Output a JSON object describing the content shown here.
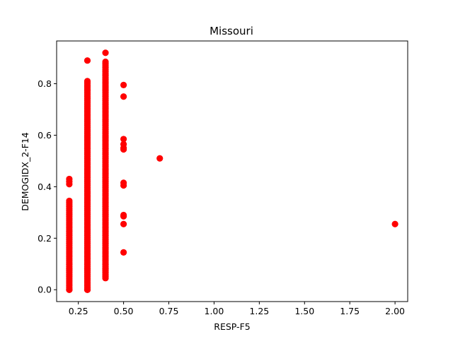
{
  "chart_data": {
    "type": "scatter",
    "title": "Missouri",
    "xlabel": "RESP-F5",
    "ylabel": "DEMOGIDX_2-F14",
    "xlim": [
      0.13,
      2.07
    ],
    "ylim": [
      -0.046,
      0.966
    ],
    "xticks": [
      0.25,
      0.5,
      0.75,
      1.0,
      1.25,
      1.5,
      1.75,
      2.0
    ],
    "xtick_labels": [
      "0.25",
      "0.50",
      "0.75",
      "1.00",
      "1.25",
      "1.50",
      "1.75",
      "2.00"
    ],
    "yticks": [
      0.0,
      0.2,
      0.4,
      0.6,
      0.8
    ],
    "ytick_labels": [
      "0.0",
      "0.2",
      "0.4",
      "0.6",
      "0.8"
    ],
    "grid": false,
    "legend": "none",
    "color": "#ff0000",
    "columns": [
      {
        "x": 0.2,
        "ymin": 0.0,
        "ymax": 0.35,
        "count": 48,
        "step": 0.0075
      },
      {
        "x": 0.3,
        "ymin": 0.0,
        "ymax": 0.81,
        "count": 110,
        "step": 0.0075
      },
      {
        "x": 0.4,
        "ymin": 0.045,
        "ymax": 0.89,
        "count": 114,
        "step": 0.0075
      }
    ],
    "points": [
      {
        "x": 0.2,
        "y": 0.0
      },
      {
        "x": 0.2,
        "y": 0.41
      },
      {
        "x": 0.2,
        "y": 0.42
      },
      {
        "x": 0.2,
        "y": 0.43
      },
      {
        "x": 0.3,
        "y": 0.0
      },
      {
        "x": 0.3,
        "y": 0.89
      },
      {
        "x": 0.4,
        "y": 0.92
      },
      {
        "x": 0.5,
        "y": 0.145
      },
      {
        "x": 0.5,
        "y": 0.255
      },
      {
        "x": 0.5,
        "y": 0.285
      },
      {
        "x": 0.5,
        "y": 0.29
      },
      {
        "x": 0.5,
        "y": 0.405
      },
      {
        "x": 0.5,
        "y": 0.415
      },
      {
        "x": 0.5,
        "y": 0.545
      },
      {
        "x": 0.5,
        "y": 0.55
      },
      {
        "x": 0.5,
        "y": 0.565
      },
      {
        "x": 0.5,
        "y": 0.585
      },
      {
        "x": 0.5,
        "y": 0.75
      },
      {
        "x": 0.5,
        "y": 0.795
      },
      {
        "x": 0.7,
        "y": 0.51
      },
      {
        "x": 2.0,
        "y": 0.255
      }
    ]
  }
}
